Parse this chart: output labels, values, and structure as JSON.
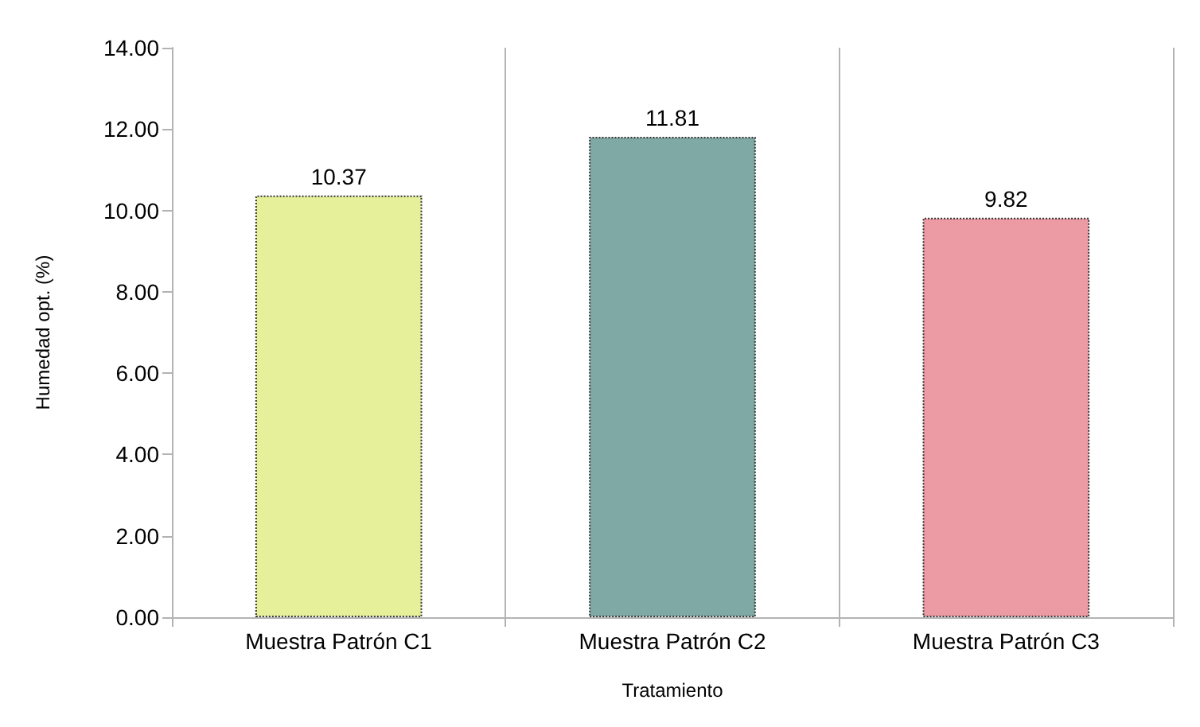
{
  "chart_data": {
    "type": "bar",
    "xlabel": "Tratamiento",
    "ylabel": "Humedad opt. (%)",
    "categories": [
      "Muestra Patrón C1",
      "Muestra Patrón C2",
      "Muestra Patrón C3"
    ],
    "values": [
      10.37,
      11.81,
      9.82
    ],
    "colors": [
      "#e6f09b",
      "#7fa9a4",
      "#ec9aa3"
    ],
    "ylim": [
      0,
      14
    ],
    "yticks": [
      {
        "value": 0,
        "label": "0.00"
      },
      {
        "value": 2,
        "label": "2.00"
      },
      {
        "value": 4,
        "label": "4.00"
      },
      {
        "value": 6,
        "label": "6.00"
      },
      {
        "value": 8,
        "label": "8.00"
      },
      {
        "value": 10,
        "label": "10.00"
      },
      {
        "value": 12,
        "label": "12.00"
      },
      {
        "value": 14,
        "label": "14.00"
      }
    ],
    "grid": "x",
    "data_labels": true
  }
}
